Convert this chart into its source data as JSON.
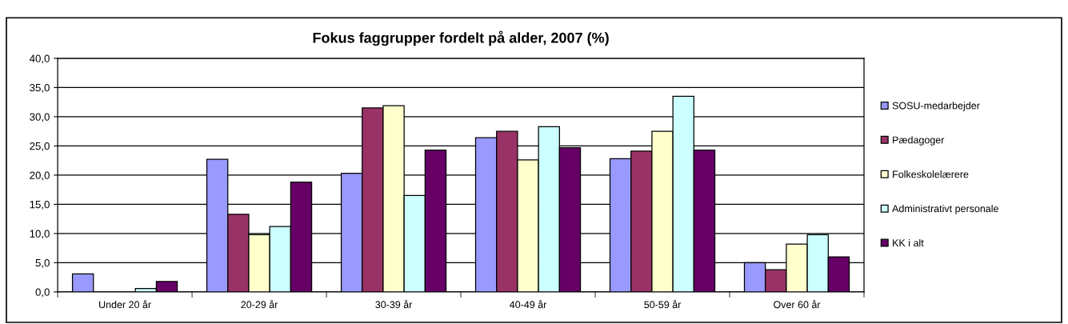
{
  "chart_data": {
    "type": "bar",
    "title": "Fokus faggrupper fordelt på alder, 2007 (%)",
    "categories": [
      "Under 20 år",
      "20-29 år",
      "30-39 år",
      "40-49 år",
      "50-59 år",
      "Over 60 år"
    ],
    "series": [
      {
        "name": "SOSU-medarbejder",
        "color": "#9999ff",
        "values": [
          3.1,
          22.7,
          20.3,
          26.4,
          22.8,
          5.0
        ]
      },
      {
        "name": "Pædagoger",
        "color": "#993366",
        "values": [
          null,
          13.3,
          31.5,
          27.5,
          24.1,
          3.8
        ]
      },
      {
        "name": "Folkeskolelærere",
        "color": "#ffffcc",
        "values": [
          null,
          9.8,
          31.9,
          22.6,
          27.5,
          8.2
        ]
      },
      {
        "name": "Administrativt personale",
        "color": "#ccffff",
        "values": [
          0.6,
          11.2,
          16.5,
          28.3,
          33.5,
          9.8
        ]
      },
      {
        "name": "KK i alt",
        "color": "#660066",
        "values": [
          1.8,
          18.8,
          24.3,
          24.7,
          24.3,
          6.0
        ]
      }
    ],
    "ylim": [
      0,
      40
    ],
    "yticks": [
      {
        "value": 0,
        "label": "0,0"
      },
      {
        "value": 5,
        "label": "5,0"
      },
      {
        "value": 10,
        "label": "10,0"
      },
      {
        "value": 15,
        "label": "15,0"
      },
      {
        "value": 20,
        "label": "20,0"
      },
      {
        "value": 25,
        "label": "25,0"
      },
      {
        "value": 30,
        "label": "30,0"
      },
      {
        "value": 35,
        "label": "35,0"
      },
      {
        "value": 40,
        "label": "40,0"
      }
    ],
    "grid": "y",
    "legend": "right"
  }
}
